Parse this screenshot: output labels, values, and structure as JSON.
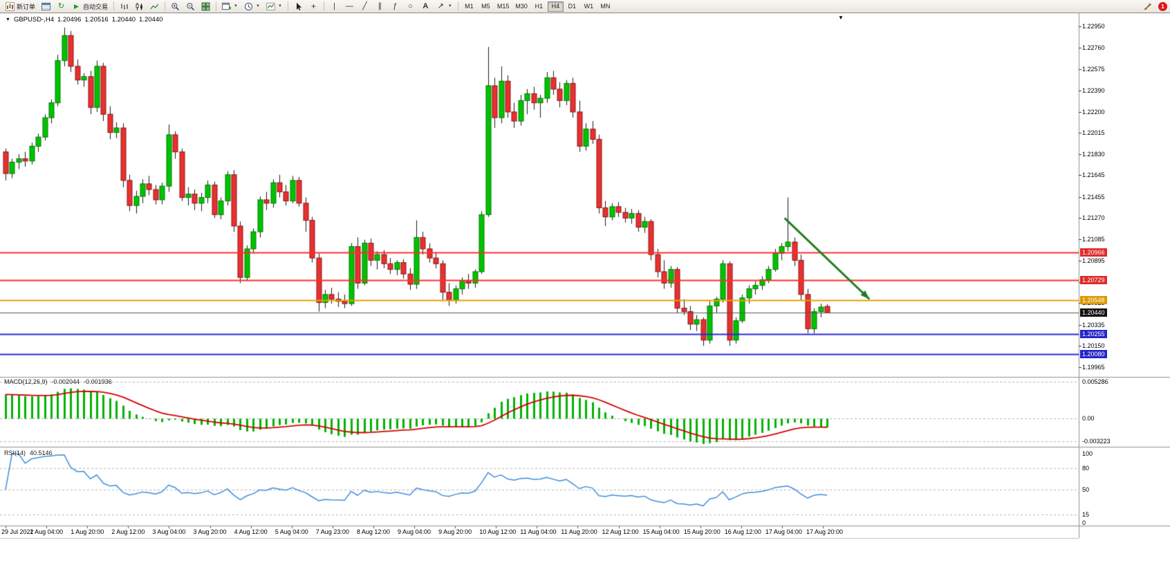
{
  "window": {
    "badge_count": "1"
  },
  "toolbar": {
    "new_order_label": "新订单",
    "autotrade_label": "自动交易",
    "timeframes": [
      {
        "label": "M1",
        "active": false
      },
      {
        "label": "M5",
        "active": false
      },
      {
        "label": "M15",
        "active": false
      },
      {
        "label": "M30",
        "active": false
      },
      {
        "label": "H1",
        "active": false
      },
      {
        "label": "H4",
        "active": true
      },
      {
        "label": "D1",
        "active": false
      },
      {
        "label": "W1",
        "active": false
      },
      {
        "label": "MN",
        "active": false
      }
    ]
  },
  "chart": {
    "symbol_period": "GBPUSD-,H4",
    "ohlc": {
      "open": "1.20496",
      "high": "1.20516",
      "low": "1.20440",
      "close": "1.20440"
    }
  },
  "price_axis": {
    "labels": [
      "1.22950",
      "1.22760",
      "1.22575",
      "1.22390",
      "1.22200",
      "1.22015",
      "1.21830",
      "1.21645",
      "1.21455",
      "1.21270",
      "1.21085",
      "1.20895",
      "1.20710",
      "1.20525",
      "1.20335",
      "1.20150",
      "1.19965"
    ]
  },
  "time_axis": {
    "labels": [
      "29 Jul 2022",
      "1 Aug 04:00",
      "1 Aug 20:00",
      "2 Aug 12:00",
      "3 Aug 04:00",
      "3 Aug 20:00",
      "4 Aug 12:00",
      "5 Aug 04:00",
      "7 Aug 23:00",
      "8 Aug 12:00",
      "9 Aug 04:00",
      "9 Aug 20:00",
      "10 Aug 12:00",
      "11 Aug 04:00",
      "11 Aug 20:00",
      "12 Aug 12:00",
      "15 Aug 04:00",
      "15 Aug 20:00",
      "16 Aug 12:00",
      "17 Aug 04:00",
      "17 Aug 20:00"
    ]
  },
  "macd_panel": {
    "label": "MACD(12,26,9)",
    "value_main": "-0.002044",
    "value_signal": "-0.001936",
    "axis_labels": [
      {
        "text": "0.005286",
        "value": 0.005286
      },
      {
        "text": "0.00",
        "value": 0
      },
      {
        "text": "-0.003223",
        "value": -0.003223
      }
    ]
  },
  "rsi_panel": {
    "label": "RSI(14)",
    "value": "40.5146",
    "levels": [
      80,
      50,
      15
    ],
    "axis_labels": [
      {
        "text": "100",
        "value": 100
      },
      {
        "text": "80",
        "value": 80
      },
      {
        "text": "50",
        "value": 50
      },
      {
        "text": "15",
        "value": 15
      },
      {
        "text": "0",
        "value": 0
      }
    ]
  },
  "chart_data": {
    "type": "candlestick",
    "symbol": "GBPUSD-",
    "timeframe": "H4",
    "price_range": [
      1.1989,
      1.2306
    ],
    "up_color": "#00c300",
    "down_color": "#e93030",
    "wick_color": "#1a1a1a",
    "candles": [
      [
        1.2185,
        1.2188,
        1.216,
        1.2166
      ],
      [
        1.2166,
        1.2179,
        1.2162,
        1.2176
      ],
      [
        1.2176,
        1.2183,
        1.217,
        1.2179
      ],
      [
        1.2179,
        1.2185,
        1.2172,
        1.2177
      ],
      [
        1.2177,
        1.2193,
        1.2174,
        1.219
      ],
      [
        1.219,
        1.2201,
        1.2185,
        1.2198
      ],
      [
        1.2198,
        1.2218,
        1.2195,
        1.2215
      ],
      [
        1.2215,
        1.2231,
        1.221,
        1.2228
      ],
      [
        1.2228,
        1.227,
        1.2225,
        1.2265
      ],
      [
        1.2265,
        1.2294,
        1.226,
        1.2287
      ],
      [
        1.2287,
        1.2291,
        1.2255,
        1.226
      ],
      [
        1.226,
        1.2266,
        1.2244,
        1.2248
      ],
      [
        1.2248,
        1.2254,
        1.2242,
        1.2251
      ],
      [
        1.2251,
        1.2256,
        1.2218,
        1.2224
      ],
      [
        1.2224,
        1.2265,
        1.222,
        1.226
      ],
      [
        1.226,
        1.2263,
        1.2212,
        1.2218
      ],
      [
        1.2218,
        1.2225,
        1.2196,
        1.2202
      ],
      [
        1.2202,
        1.2211,
        1.2197,
        1.2206
      ],
      [
        1.2206,
        1.221,
        1.2154,
        1.216
      ],
      [
        1.216,
        1.2165,
        1.2133,
        1.2138
      ],
      [
        1.2138,
        1.2151,
        1.2131,
        1.2146
      ],
      [
        1.2146,
        1.2161,
        1.214,
        1.2157
      ],
      [
        1.2157,
        1.2164,
        1.2147,
        1.2152
      ],
      [
        1.2152,
        1.2156,
        1.2139,
        1.2143
      ],
      [
        1.2143,
        1.2158,
        1.2139,
        1.2155
      ],
      [
        1.2155,
        1.2209,
        1.215,
        1.22
      ],
      [
        1.22,
        1.2203,
        1.2179,
        1.2185
      ],
      [
        1.2185,
        1.2188,
        1.2142,
        1.2145
      ],
      [
        1.2145,
        1.2154,
        1.2138,
        1.2148
      ],
      [
        1.2148,
        1.2152,
        1.2134,
        1.214
      ],
      [
        1.214,
        1.2149,
        1.2133,
        1.2145
      ],
      [
        1.2145,
        1.216,
        1.214,
        1.2156
      ],
      [
        1.2156,
        1.2159,
        1.2127,
        1.213
      ],
      [
        1.213,
        1.2145,
        1.2126,
        1.2142
      ],
      [
        1.2142,
        1.2168,
        1.2138,
        1.2165
      ],
      [
        1.2165,
        1.2169,
        1.2115,
        1.212
      ],
      [
        1.212,
        1.2124,
        1.207,
        1.2075
      ],
      [
        1.2075,
        1.2103,
        1.2072,
        1.21
      ],
      [
        1.21,
        1.2118,
        1.2096,
        1.2115
      ],
      [
        1.2115,
        1.2146,
        1.211,
        1.2143
      ],
      [
        1.2143,
        1.215,
        1.2134,
        1.214
      ],
      [
        1.214,
        1.2161,
        1.2136,
        1.2158
      ],
      [
        1.2158,
        1.2165,
        1.2145,
        1.215
      ],
      [
        1.215,
        1.2156,
        1.2138,
        1.2142
      ],
      [
        1.2142,
        1.2164,
        1.214,
        1.216
      ],
      [
        1.216,
        1.2163,
        1.2137,
        1.214
      ],
      [
        1.214,
        1.2145,
        1.2115,
        1.2125
      ],
      [
        1.2125,
        1.2128,
        1.2088,
        1.2092
      ],
      [
        1.2092,
        1.2096,
        1.2045,
        1.2053
      ],
      [
        1.2053,
        1.2064,
        1.2048,
        1.206
      ],
      [
        1.206,
        1.2066,
        1.2052,
        1.2056
      ],
      [
        1.2056,
        1.2062,
        1.2049,
        1.2054
      ],
      [
        1.2054,
        1.206,
        1.2048,
        1.2052
      ],
      [
        1.2052,
        1.2105,
        1.205,
        1.2102
      ],
      [
        1.2102,
        1.211,
        1.2065,
        1.207
      ],
      [
        1.207,
        1.2108,
        1.2068,
        1.2105
      ],
      [
        1.2105,
        1.2109,
        1.2085,
        1.209
      ],
      [
        1.209,
        1.2098,
        1.2082,
        1.2095
      ],
      [
        1.2095,
        1.2099,
        1.2083,
        1.2087
      ],
      [
        1.2087,
        1.2092,
        1.2078,
        1.2082
      ],
      [
        1.2082,
        1.209,
        1.2077,
        1.2088
      ],
      [
        1.2088,
        1.2091,
        1.2074,
        1.2078
      ],
      [
        1.2078,
        1.2083,
        1.2064,
        1.2069
      ],
      [
        1.2069,
        1.2125,
        1.2065,
        1.211
      ],
      [
        1.211,
        1.2115,
        1.2095,
        1.21
      ],
      [
        1.21,
        1.2105,
        1.2088,
        1.2092
      ],
      [
        1.2092,
        1.2097,
        1.2083,
        1.2087
      ],
      [
        1.2087,
        1.209,
        1.2055,
        1.2062
      ],
      [
        1.2062,
        1.207,
        1.205,
        1.2055
      ],
      [
        1.2055,
        1.2068,
        1.2052,
        1.2065
      ],
      [
        1.2065,
        1.2075,
        1.206,
        1.2072
      ],
      [
        1.2072,
        1.2078,
        1.2065,
        1.207
      ],
      [
        1.207,
        1.2082,
        1.2066,
        1.208
      ],
      [
        1.208,
        1.2133,
        1.2078,
        1.213
      ],
      [
        1.213,
        1.2277,
        1.2128,
        1.2243
      ],
      [
        1.2243,
        1.225,
        1.2206,
        1.2215
      ],
      [
        1.2215,
        1.226,
        1.221,
        1.2247
      ],
      [
        1.2247,
        1.2252,
        1.2215,
        1.222
      ],
      [
        1.222,
        1.2228,
        1.2206,
        1.2212
      ],
      [
        1.2212,
        1.2235,
        1.2208,
        1.223
      ],
      [
        1.223,
        1.224,
        1.2218,
        1.2236
      ],
      [
        1.2236,
        1.2242,
        1.2222,
        1.2228
      ],
      [
        1.2228,
        1.2235,
        1.2215,
        1.2232
      ],
      [
        1.2232,
        1.2255,
        1.2228,
        1.225
      ],
      [
        1.225,
        1.2256,
        1.2235,
        1.224
      ],
      [
        1.224,
        1.2246,
        1.2224,
        1.223
      ],
      [
        1.223,
        1.2248,
        1.2226,
        1.2245
      ],
      [
        1.2245,
        1.225,
        1.2215,
        1.222
      ],
      [
        1.222,
        1.223,
        1.2185,
        1.219
      ],
      [
        1.219,
        1.221,
        1.2186,
        1.2205
      ],
      [
        1.2205,
        1.2212,
        1.2192,
        1.2196
      ],
      [
        1.2196,
        1.22,
        1.2131,
        1.2136
      ],
      [
        1.2136,
        1.2142,
        1.212,
        1.2128
      ],
      [
        1.2128,
        1.214,
        1.2125,
        1.2137
      ],
      [
        1.2137,
        1.2141,
        1.2128,
        1.2132
      ],
      [
        1.2132,
        1.2136,
        1.2123,
        1.2127
      ],
      [
        1.2127,
        1.2135,
        1.2122,
        1.2131
      ],
      [
        1.2131,
        1.2134,
        1.2115,
        1.2119
      ],
      [
        1.2119,
        1.2128,
        1.2114,
        1.2124
      ],
      [
        1.2124,
        1.2126,
        1.209,
        1.2095
      ],
      [
        1.2095,
        1.21,
        1.2075,
        1.208
      ],
      [
        1.208,
        1.209,
        1.2065,
        1.207
      ],
      [
        1.207,
        1.2085,
        1.2066,
        1.2082
      ],
      [
        1.2082,
        1.2084,
        1.2044,
        1.2048
      ],
      [
        1.2048,
        1.2056,
        1.2042,
        1.2045
      ],
      [
        1.2045,
        1.205,
        1.2029,
        1.2034
      ],
      [
        1.2034,
        1.2042,
        1.2028,
        1.2038
      ],
      [
        1.2038,
        1.204,
        1.2015,
        1.202
      ],
      [
        1.202,
        1.2055,
        1.2017,
        1.205
      ],
      [
        1.205,
        1.2058,
        1.2044,
        1.2056
      ],
      [
        1.2056,
        1.209,
        1.2053,
        1.2087
      ],
      [
        1.2087,
        1.2089,
        1.2015,
        1.202
      ],
      [
        1.202,
        1.204,
        1.2017,
        1.2037
      ],
      [
        1.2037,
        1.206,
        1.2035,
        1.2057
      ],
      [
        1.2057,
        1.2068,
        1.2052,
        1.2065
      ],
      [
        1.2065,
        1.2072,
        1.206,
        1.2068
      ],
      [
        1.2068,
        1.2076,
        1.2064,
        1.2073
      ],
      [
        1.2073,
        1.2085,
        1.207,
        1.2082
      ],
      [
        1.2082,
        1.21,
        1.208,
        1.2096
      ],
      [
        1.2096,
        1.2105,
        1.209,
        1.2102
      ],
      [
        1.2102,
        1.2145,
        1.2098,
        1.2106
      ],
      [
        1.2106,
        1.211,
        1.2085,
        1.209
      ],
      [
        1.209,
        1.2095,
        1.2055,
        1.206
      ],
      [
        1.206,
        1.2065,
        1.2026,
        1.203
      ],
      [
        1.203,
        1.2048,
        1.2026,
        1.2045
      ],
      [
        1.2045,
        1.2052,
        1.204,
        1.2049
      ],
      [
        1.20496,
        1.20516,
        1.2044,
        1.2044
      ]
    ],
    "hlines": [
      {
        "price": 1.20966,
        "color": "#ff2e2e",
        "tag_bg": "#dd2c2c",
        "label": "1.20966",
        "width": 2
      },
      {
        "price": 1.20729,
        "color": "#ff2e2e",
        "tag_bg": "#dd2c2c",
        "label": "1.20729",
        "width": 2
      },
      {
        "price": 1.20548,
        "color": "#e8a200",
        "tag_bg": "#dd9900",
        "label": "1.20548",
        "width": 2
      },
      {
        "price": 1.2044,
        "color": "#555555",
        "tag_bg": "#111111",
        "label": "1.20440",
        "width": 1
      },
      {
        "price": 1.20255,
        "color": "#2929d8",
        "tag_bg": "#2626c9",
        "label": "1.20255",
        "width": 2
      },
      {
        "price": 1.2008,
        "color": "#2929d8",
        "tag_bg": "#2626c9",
        "label": "1.20080",
        "width": 2
      }
    ],
    "arrow": {
      "from_index": 119.5,
      "from_price": 1.2127,
      "to_index": 132.5,
      "to_price": 1.2056,
      "color": "#1e7d1e",
      "width": 3
    },
    "indicators": {
      "macd": {
        "params": [
          12,
          26,
          9
        ],
        "histogram_color": "#00b300",
        "signal_color": "#d40000",
        "current_values": "-0.002044 -0.001936"
      },
      "rsi": {
        "params": [
          14
        ],
        "color": "#3e8ede",
        "current_value": 40.5146,
        "levels": [
          80,
          50,
          15
        ]
      }
    }
  }
}
